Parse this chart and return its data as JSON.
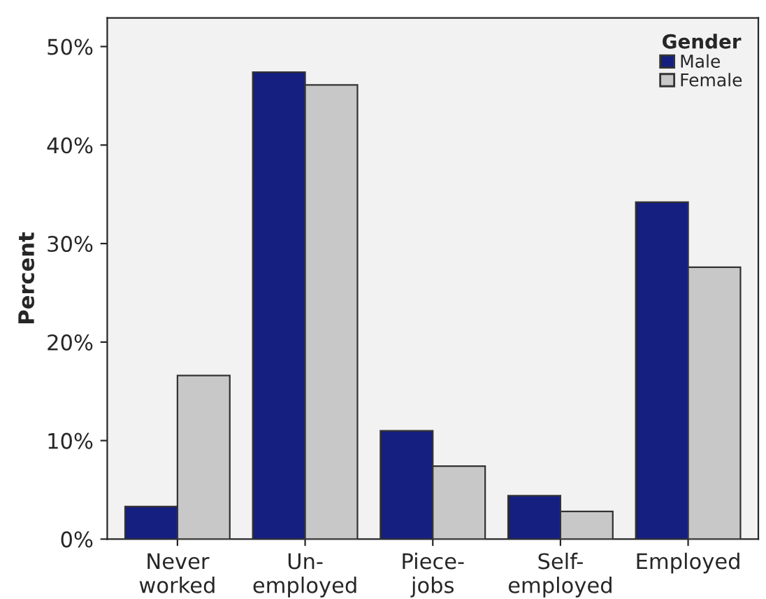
{
  "chart_data": {
    "type": "bar",
    "ylabel": "Percent",
    "legend_title": "Gender",
    "legend": "top right",
    "grid": false,
    "categories": [
      "Never\nworked",
      "Un-\nemployed",
      "Piece-\njobs",
      "Self-\nemployed",
      "Employed"
    ],
    "series": [
      {
        "name": "Male",
        "color": "#141f80",
        "values": [
          3.3,
          47.4,
          11.0,
          4.4,
          34.2
        ]
      },
      {
        "name": "Female",
        "color": "#c8c8c8",
        "values": [
          16.6,
          46.1,
          7.4,
          2.8,
          27.6
        ]
      }
    ],
    "ylim": [
      0,
      52.9
    ],
    "yticks": [
      {
        "value": 0,
        "label": "0%"
      },
      {
        "value": 10,
        "label": "10%"
      },
      {
        "value": 20,
        "label": "20%"
      },
      {
        "value": 30,
        "label": "30%"
      },
      {
        "value": 40,
        "label": "40%"
      },
      {
        "value": 50,
        "label": "50%"
      }
    ]
  }
}
